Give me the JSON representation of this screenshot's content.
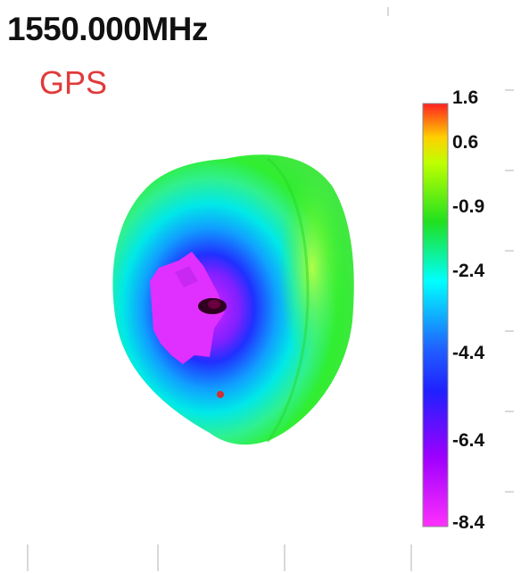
{
  "header": {
    "frequency": "1550.000MHz",
    "band": "GPS"
  },
  "colorbar": {
    "ticks": [
      "1.6",
      "0.6",
      "-0.9",
      "-2.4",
      "-4.4",
      "-6.4",
      "-8.4"
    ],
    "range": [
      -8.4,
      1.6
    ],
    "gradient_colors": [
      "#ff2020",
      "#ffd000",
      "#bfff00",
      "#20e020",
      "#00ffff",
      "#2060ff",
      "#2020ff",
      "#a000ff",
      "#ff30ff"
    ]
  },
  "pattern": {
    "colors": {
      "high": "#b8ff40",
      "mid": "#30f030",
      "low_mid": "#00e8e8",
      "low": "#2030ff",
      "min": "#e030ff",
      "null": "#300020",
      "marker": "#d03030"
    }
  }
}
